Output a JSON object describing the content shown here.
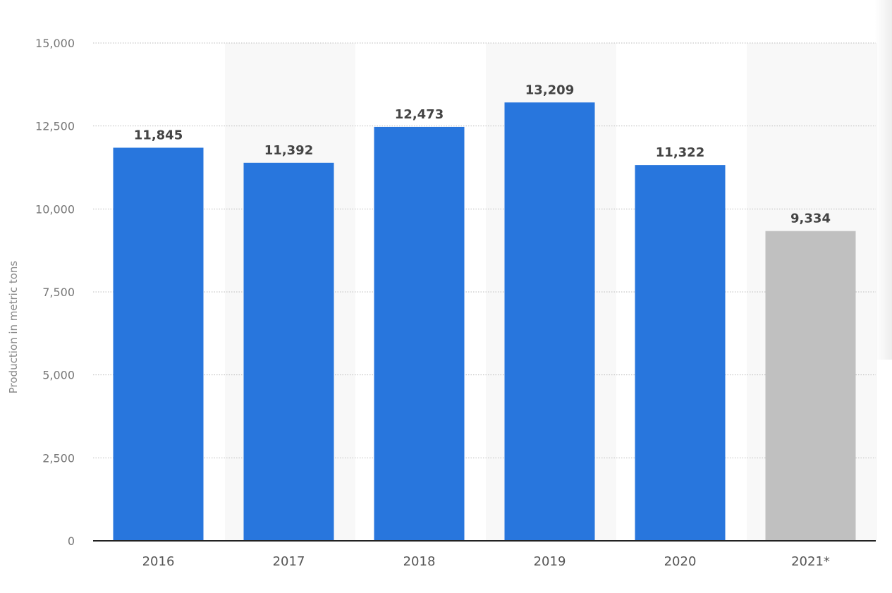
{
  "chart_data": {
    "type": "bar",
    "title": "",
    "xlabel": "",
    "ylabel": "Production in metric tons",
    "categories": [
      "2016",
      "2017",
      "2018",
      "2019",
      "2020",
      "2021*"
    ],
    "values": [
      11845,
      11392,
      12473,
      13209,
      11322,
      9334
    ],
    "value_labels": [
      "11,845",
      "11,392",
      "12,473",
      "13,209",
      "11,322",
      "9,334"
    ],
    "bar_colors": [
      "#2876dd",
      "#2876dd",
      "#2876dd",
      "#2876dd",
      "#2876dd",
      "#c0c0c0"
    ],
    "ylim": [
      0,
      15000
    ],
    "yticks": [
      0,
      2500,
      5000,
      7500,
      10000,
      12500,
      15000
    ],
    "ytick_labels": [
      "0",
      "2,500",
      "5,000",
      "7,500",
      "10,000",
      "12,500",
      "15,000"
    ],
    "grid": true,
    "legend": "none"
  }
}
